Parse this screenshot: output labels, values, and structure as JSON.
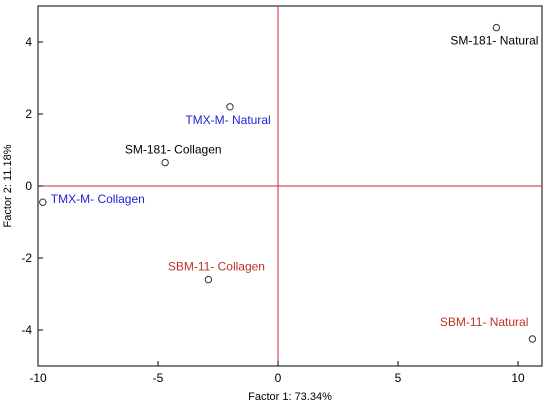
{
  "chart_data": {
    "type": "scatter",
    "title": "",
    "xlabel": "Factor 1: 73.34%",
    "ylabel": "Factor 2: 11.18%",
    "xlim": [
      -10,
      11
    ],
    "ylim": [
      -5,
      5
    ],
    "xticks": [
      -10,
      -5,
      0,
      5,
      10
    ],
    "yticks": [
      -4,
      -2,
      0,
      2,
      4
    ],
    "xtick_labels": [
      "-10",
      "-5",
      "0",
      "5",
      "10"
    ],
    "ytick_labels": [
      "-4",
      "-2",
      "0",
      "2",
      "4"
    ],
    "grid": false,
    "reference_lines": {
      "x": 0,
      "y": 0,
      "color": "#d62728"
    },
    "marker": "open-circle",
    "points": [
      {
        "label": "SM-181- Natural",
        "x": 9.1,
        "y": 4.4,
        "color": "#000000",
        "label_anchor": "below"
      },
      {
        "label": "TMX-M- Natural",
        "x": -2.0,
        "y": 2.2,
        "color": "#1f1fd6",
        "label_anchor": "below"
      },
      {
        "label": "SM-181- Collagen",
        "x": -4.7,
        "y": 0.65,
        "color": "#000000",
        "label_anchor": "above"
      },
      {
        "label": "TMX-M- Collagen",
        "x": -9.8,
        "y": -0.45,
        "color": "#1f1fd6",
        "label_anchor": "right"
      },
      {
        "label": "SBM-11- Collagen",
        "x": -2.9,
        "y": -2.6,
        "color": "#c0302a",
        "label_anchor": "above"
      },
      {
        "label": "SBM-11- Natural",
        "x": 10.6,
        "y": -4.25,
        "color": "#c0302a",
        "label_anchor": "above-left"
      }
    ]
  }
}
